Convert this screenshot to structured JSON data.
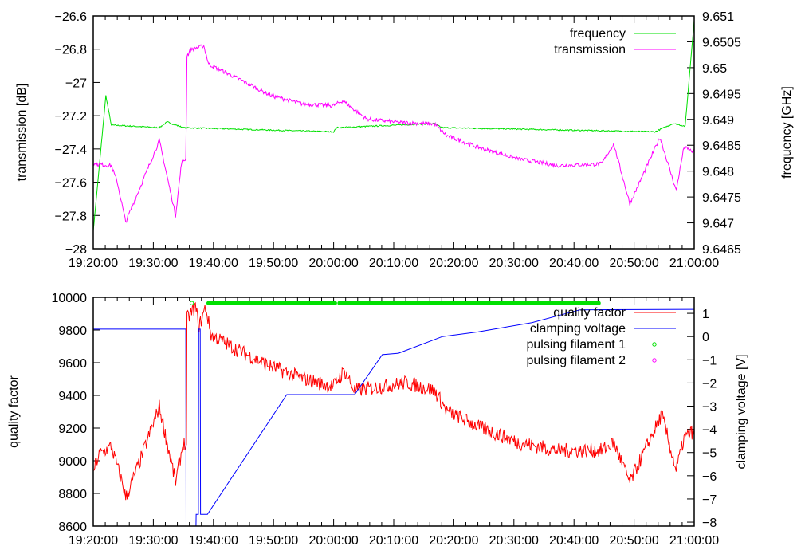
{
  "chart_data": [
    {
      "type": "line",
      "panel": "top",
      "xlim_minutes": [
        0,
        100
      ],
      "x_tick_labels": [
        "19:20:00",
        "19:30:00",
        "19:40:00",
        "19:50:00",
        "20:00:00",
        "20:10:00",
        "20:20:00",
        "20:30:00",
        "20:40:00",
        "20:50:00",
        "21:00:00"
      ],
      "ylabel": "transmission [dB]",
      "y2label": "frequency [GHz]",
      "ylim": [
        -28,
        -26.6
      ],
      "y_ticks": [
        -28,
        -27.8,
        -27.6,
        -27.4,
        -27.2,
        -27,
        -26.8,
        -26.6
      ],
      "y_tick_labels": [
        "−28",
        "−27.8",
        "−27.6",
        "−27.4",
        "−27.2",
        "−27",
        "−26.8",
        "−26.6"
      ],
      "y2lim": [
        9.6465,
        9.651
      ],
      "y2_ticks": [
        9.6465,
        9.647,
        9.6475,
        9.648,
        9.6485,
        9.649,
        9.6495,
        9.65,
        9.6505,
        9.651
      ],
      "y2_tick_labels": [
        "9.6465",
        "9.647",
        "9.6475",
        "9.648",
        "9.6485",
        "9.649",
        "9.6495",
        "9.65",
        "9.6505",
        "9.651"
      ],
      "legend_position": "top-right",
      "series": [
        {
          "name": "frequency",
          "axis": "y2",
          "color": "#00e000",
          "noise": 1.2e-05,
          "x": [
            0,
            2.1,
            3,
            11,
            12.3,
            15,
            40,
            40.5,
            56.8,
            58,
            93.5,
            96.5,
            98.5,
            100
          ],
          "y": [
            9.64684,
            9.64946,
            9.64889,
            9.64884,
            9.64895,
            9.64884,
            9.64876,
            9.64884,
            9.64892,
            9.64884,
            9.64876,
            9.64892,
            9.64887,
            9.65092
          ]
        },
        {
          "name": "transmission",
          "axis": "y",
          "color": "#ff00ff",
          "noise": 0.012,
          "x": [
            0,
            3,
            4,
            5.4,
            11,
            13.7,
            14.7,
            15.4,
            15.6,
            16.3,
            18.4,
            19.2,
            24.3,
            29.6,
            34.9,
            39.9,
            41.5,
            45.5,
            50.8,
            56.8,
            58.8,
            64,
            70.7,
            77.3,
            84.6,
            86.6,
            89.3,
            94.3,
            97,
            98.3,
            100
          ],
          "y": [
            -27.49,
            -27.5,
            -27.6,
            -27.84,
            -27.35,
            -27.8,
            -27.48,
            -27.46,
            -26.84,
            -26.8,
            -26.78,
            -26.89,
            -26.98,
            -27.08,
            -27.13,
            -27.14,
            -27.11,
            -27.22,
            -27.24,
            -27.25,
            -27.32,
            -27.39,
            -27.46,
            -27.5,
            -27.49,
            -27.37,
            -27.73,
            -27.33,
            -27.65,
            -27.39,
            -27.42
          ]
        }
      ]
    },
    {
      "type": "line",
      "panel": "bottom",
      "xlim_minutes": [
        0,
        100
      ],
      "x_tick_labels": [
        "19:20:00",
        "19:30:00",
        "19:40:00",
        "19:50:00",
        "20:00:00",
        "20:10:00",
        "20:20:00",
        "20:30:00",
        "20:40:00",
        "20:50:00",
        "21:00:00"
      ],
      "ylabel": "quality factor",
      "y2label": "clamping voltage [V]",
      "ylim": [
        8600,
        10000
      ],
      "y_ticks": [
        8600,
        8800,
        9000,
        9200,
        9400,
        9600,
        9800,
        10000
      ],
      "y_tick_labels": [
        "8600",
        "8800",
        "9000",
        "9200",
        "9400",
        "9600",
        "9800",
        "10000"
      ],
      "y2lim": [
        -8.17,
        1.69
      ],
      "y2_ticks": [
        -8,
        -7,
        -6,
        -5,
        -4,
        -3,
        -2,
        -1,
        0,
        1
      ],
      "y2_tick_labels": [
        "−8",
        "−7",
        "−6",
        "−5",
        "−4",
        "−3",
        "−2",
        "−1",
        "0",
        "1"
      ],
      "legend_position": "top-right",
      "series": [
        {
          "name": "quality factor",
          "axis": "y",
          "color": "#ff0000",
          "noise": 45,
          "x": [
            0,
            1,
            3,
            5,
            5.4,
            7.7,
            11,
            13.7,
            15,
            15.5,
            15.6,
            17,
            17.6,
            18.7,
            19.6,
            24.3,
            29.6,
            34.9,
            39.9,
            41.8,
            43.5,
            48.1,
            52.1,
            56.8,
            58.8,
            64,
            70.7,
            77.3,
            84.6,
            86.6,
            89.3,
            94.6,
            97,
            98.3,
            100
          ],
          "y": [
            8941,
            9039,
            9088,
            8844,
            8771,
            8990,
            9331,
            8868,
            9112,
            9080,
            9868,
            9941,
            9820,
            9941,
            9771,
            9673,
            9576,
            9502,
            9454,
            9551,
            9429,
            9454,
            9478,
            9429,
            9307,
            9210,
            9112,
            9063,
            9063,
            9112,
            8868,
            9283,
            8941,
            9137,
            9185
          ]
        },
        {
          "name": "clamping voltage",
          "axis": "y2",
          "color": "#0000ff",
          "noise": 0,
          "x": [
            0,
            15.4,
            15.45,
            17.1,
            17.12,
            17.5,
            17.55,
            17.8,
            17.85,
            19,
            32.2,
            43.5,
            48.1,
            50.8,
            58.1,
            64,
            73,
            81,
            100
          ],
          "y": [
            0.32,
            0.32,
            -8.17,
            -8.17,
            -7.66,
            -7.66,
            0.32,
            0.32,
            -7.66,
            -7.66,
            -2.5,
            -2.5,
            -0.78,
            -0.72,
            0.0,
            0.2,
            0.6,
            1.15,
            1.17
          ]
        },
        {
          "name": "pulsing filament 1",
          "axis": "y",
          "color": "#00e000",
          "type": "points",
          "level": 9965,
          "points": [
            16.4
          ],
          "intervals": [
            [
              19.2,
              40.2
            ],
            [
              41.0,
              84.2
            ]
          ]
        },
        {
          "name": "pulsing filament 2",
          "axis": "y",
          "color": "#ff00ff",
          "type": "points",
          "level": 9965,
          "points": [],
          "intervals": []
        }
      ]
    }
  ]
}
